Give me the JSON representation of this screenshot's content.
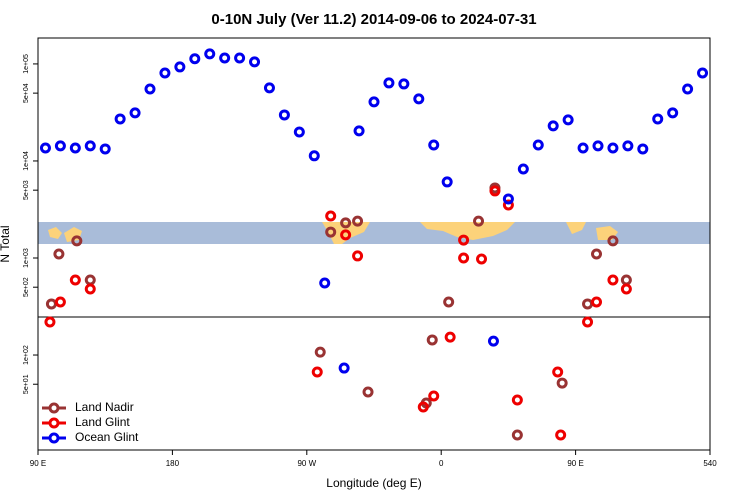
{
  "chart_data": {
    "type": "scatter",
    "title": "0-10N July (Ver 11.2)   2014-09-06 to 2024-07-31",
    "xlabel": "Longitude (deg E)",
    "ylabel": "N Total",
    "log_y": true,
    "legend": "bottom-left",
    "xlim": [
      90,
      540
    ],
    "xticks": [
      {
        "value": 90,
        "label": "90 E"
      },
      180,
      {
        "value": 270,
        "label": "90 W"
      },
      {
        "value": 360,
        "label": "0"
      },
      {
        "value": 450,
        "label": "90 E"
      },
      540
    ],
    "ylim": [
      10.5,
      185000
    ],
    "yticks": [
      {
        "value": 50,
        "label": "5e+01"
      },
      {
        "value": 100,
        "label": "1e+02"
      },
      {
        "value": 500,
        "label": "5e+02"
      },
      {
        "value": 1000,
        "label": "1e+03"
      },
      {
        "value": 5000,
        "label": "5e+03"
      },
      {
        "value": 10000,
        "label": "1e+04"
      },
      {
        "value": 50000,
        "label": "5e+04"
      },
      {
        "value": 100000,
        "label": "1e+05"
      }
    ],
    "series": [
      {
        "name": "Land Nadir",
        "color": "#993333",
        "x": [
          99,
          104,
          116,
          125,
          286,
          296,
          304,
          279,
          311,
          350,
          354,
          365,
          385,
          396,
          411,
          441,
          458,
          464,
          475,
          484
        ],
        "values": [
          336,
          1100,
          1500,
          593,
          1850,
          2300,
          2400,
          107,
          41.6,
          32,
          143,
          352,
          2400,
          5270,
          15,
          51.4,
          336,
          1100,
          1500,
          593
        ]
      },
      {
        "name": "Land Glint",
        "color": "#ee0000",
        "x": [
          98,
          105,
          115,
          125,
          286,
          296,
          304,
          277,
          348,
          355,
          366,
          375,
          375,
          387,
          396,
          405,
          411,
          438,
          440,
          458,
          464,
          475,
          484
        ],
        "values": [
          219,
          352,
          593,
          479,
          2710,
          1730,
          1050,
          66.8,
          29.1,
          37.8,
          153,
          1530,
          1000,
          977,
          4910,
          3520,
          34.4,
          66.8,
          15,
          219,
          352,
          593,
          479
        ]
      },
      {
        "name": "Ocean Glint",
        "color": "#0000ee",
        "x": [
          95,
          105,
          115,
          125,
          135,
          145,
          155,
          165,
          175,
          185,
          195,
          205,
          215,
          225,
          235,
          245,
          255,
          265,
          275,
          282,
          295,
          305,
          315,
          325,
          335,
          345,
          355,
          364,
          395,
          405,
          415,
          425,
          435,
          445,
          455,
          465,
          475,
          485,
          495,
          505,
          515,
          525,
          535
        ],
        "values": [
          13600,
          14300,
          13600,
          14300,
          13300,
          27100,
          31300,
          55200,
          80700,
          93100,
          113000,
          127000,
          115000,
          115000,
          105000,
          56600,
          29800,
          19900,
          11300,
          552,
          73.4,
          20400,
          40600,
          63700,
          62200,
          43600,
          14600,
          6080,
          139,
          4060,
          8270,
          14600,
          23000,
          26500,
          13600,
          14300,
          13600,
          14300,
          13300,
          27100,
          31300,
          55200,
          80700
        ]
      }
    ]
  }
}
